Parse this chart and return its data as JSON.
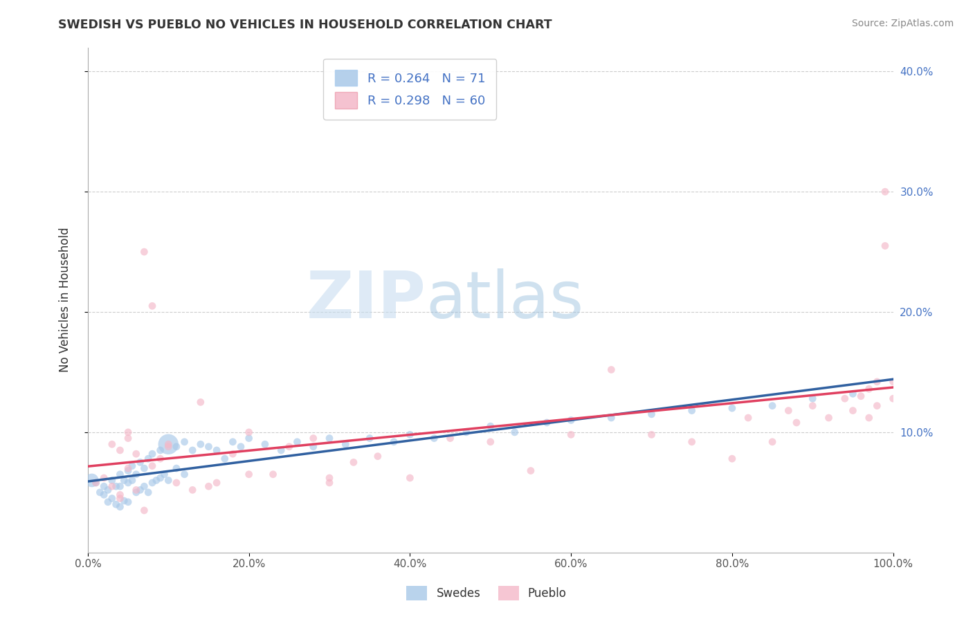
{
  "title": "SWEDISH VS PUEBLO NO VEHICLES IN HOUSEHOLD CORRELATION CHART",
  "source": "Source: ZipAtlas.com",
  "ylabel": "No Vehicles in Household",
  "legend_label1": "Swedes",
  "legend_label2": "Pueblo",
  "r1": 0.264,
  "n1": 71,
  "r2": 0.298,
  "n2": 60,
  "color_swedes": "#a8c8e8",
  "color_pueblo": "#f4b8c8",
  "color_line_swedes": "#3060a0",
  "color_line_pueblo": "#e04060",
  "xlim": [
    0.0,
    1.0
  ],
  "ylim": [
    0.0,
    0.42
  ],
  "xticks": [
    0.0,
    0.2,
    0.4,
    0.6,
    0.8,
    1.0
  ],
  "yticks": [
    0.1,
    0.2,
    0.3,
    0.4
  ],
  "xtick_labels": [
    "0.0%",
    "20.0%",
    "40.0%",
    "60.0%",
    "80.0%",
    "100.0%"
  ],
  "ytick_labels_right": [
    "10.0%",
    "20.0%",
    "30.0%",
    "40.0%"
  ],
  "watermark_zip": "ZIP",
  "watermark_atlas": "atlas",
  "background_color": "#ffffff",
  "grid_color": "#cccccc",
  "swedes_x": [
    0.005,
    0.01,
    0.015,
    0.02,
    0.02,
    0.025,
    0.025,
    0.03,
    0.03,
    0.035,
    0.035,
    0.04,
    0.04,
    0.04,
    0.045,
    0.045,
    0.05,
    0.05,
    0.05,
    0.055,
    0.055,
    0.06,
    0.06,
    0.065,
    0.065,
    0.07,
    0.07,
    0.075,
    0.075,
    0.08,
    0.08,
    0.085,
    0.09,
    0.09,
    0.095,
    0.1,
    0.1,
    0.11,
    0.11,
    0.12,
    0.12,
    0.13,
    0.14,
    0.15,
    0.16,
    0.17,
    0.18,
    0.19,
    0.2,
    0.22,
    0.24,
    0.26,
    0.28,
    0.3,
    0.32,
    0.35,
    0.38,
    0.4,
    0.43,
    0.47,
    0.5,
    0.53,
    0.57,
    0.6,
    0.65,
    0.7,
    0.75,
    0.8,
    0.85,
    0.9,
    0.95
  ],
  "swedes_y": [
    0.06,
    0.058,
    0.05,
    0.055,
    0.048,
    0.052,
    0.042,
    0.06,
    0.045,
    0.055,
    0.04,
    0.065,
    0.055,
    0.038,
    0.06,
    0.043,
    0.068,
    0.058,
    0.042,
    0.072,
    0.06,
    0.065,
    0.05,
    0.075,
    0.052,
    0.07,
    0.055,
    0.078,
    0.05,
    0.082,
    0.058,
    0.06,
    0.085,
    0.062,
    0.065,
    0.09,
    0.06,
    0.088,
    0.07,
    0.092,
    0.065,
    0.085,
    0.09,
    0.088,
    0.085,
    0.078,
    0.092,
    0.088,
    0.095,
    0.09,
    0.085,
    0.092,
    0.088,
    0.095,
    0.09,
    0.095,
    0.092,
    0.098,
    0.095,
    0.1,
    0.105,
    0.1,
    0.108,
    0.11,
    0.112,
    0.115,
    0.118,
    0.12,
    0.122,
    0.128,
    0.132
  ],
  "swedes_sizes": [
    200,
    60,
    60,
    60,
    60,
    60,
    60,
    60,
    60,
    60,
    60,
    60,
    60,
    60,
    60,
    60,
    60,
    60,
    60,
    60,
    60,
    60,
    60,
    60,
    60,
    60,
    60,
    60,
    60,
    60,
    60,
    60,
    60,
    60,
    60,
    450,
    60,
    60,
    60,
    60,
    60,
    60,
    60,
    60,
    60,
    60,
    60,
    60,
    60,
    60,
    60,
    60,
    60,
    60,
    60,
    60,
    60,
    60,
    60,
    60,
    60,
    60,
    60,
    60,
    60,
    60,
    60,
    60,
    60,
    60,
    60
  ],
  "pueblo_x": [
    0.01,
    0.02,
    0.03,
    0.04,
    0.04,
    0.05,
    0.05,
    0.06,
    0.07,
    0.08,
    0.09,
    0.1,
    0.11,
    0.13,
    0.14,
    0.16,
    0.18,
    0.2,
    0.23,
    0.25,
    0.28,
    0.3,
    0.33,
    0.36,
    0.4,
    0.45,
    0.5,
    0.55,
    0.6,
    0.65,
    0.7,
    0.75,
    0.8,
    0.82,
    0.85,
    0.87,
    0.88,
    0.9,
    0.92,
    0.94,
    0.95,
    0.96,
    0.97,
    0.97,
    0.98,
    0.98,
    0.99,
    0.99,
    1.0,
    1.0,
    0.03,
    0.04,
    0.05,
    0.06,
    0.07,
    0.08,
    0.1,
    0.15,
    0.2,
    0.3
  ],
  "pueblo_y": [
    0.058,
    0.062,
    0.055,
    0.048,
    0.085,
    0.07,
    0.095,
    0.052,
    0.25,
    0.205,
    0.078,
    0.09,
    0.058,
    0.052,
    0.125,
    0.058,
    0.082,
    0.1,
    0.065,
    0.088,
    0.095,
    0.062,
    0.075,
    0.08,
    0.062,
    0.095,
    0.092,
    0.068,
    0.098,
    0.152,
    0.098,
    0.092,
    0.078,
    0.112,
    0.092,
    0.118,
    0.108,
    0.122,
    0.112,
    0.128,
    0.118,
    0.13,
    0.136,
    0.112,
    0.122,
    0.142,
    0.255,
    0.3,
    0.142,
    0.128,
    0.09,
    0.045,
    0.1,
    0.082,
    0.035,
    0.072,
    0.088,
    0.055,
    0.065,
    0.058
  ],
  "pueblo_sizes": [
    60,
    60,
    60,
    60,
    60,
    60,
    60,
    60,
    60,
    60,
    60,
    60,
    60,
    60,
    60,
    60,
    60,
    60,
    60,
    60,
    60,
    60,
    60,
    60,
    60,
    60,
    60,
    60,
    60,
    60,
    60,
    60,
    60,
    60,
    60,
    60,
    60,
    60,
    60,
    60,
    60,
    60,
    60,
    60,
    60,
    60,
    60,
    60,
    60,
    60,
    60,
    60,
    60,
    60,
    60,
    60,
    60,
    60,
    60,
    60
  ]
}
